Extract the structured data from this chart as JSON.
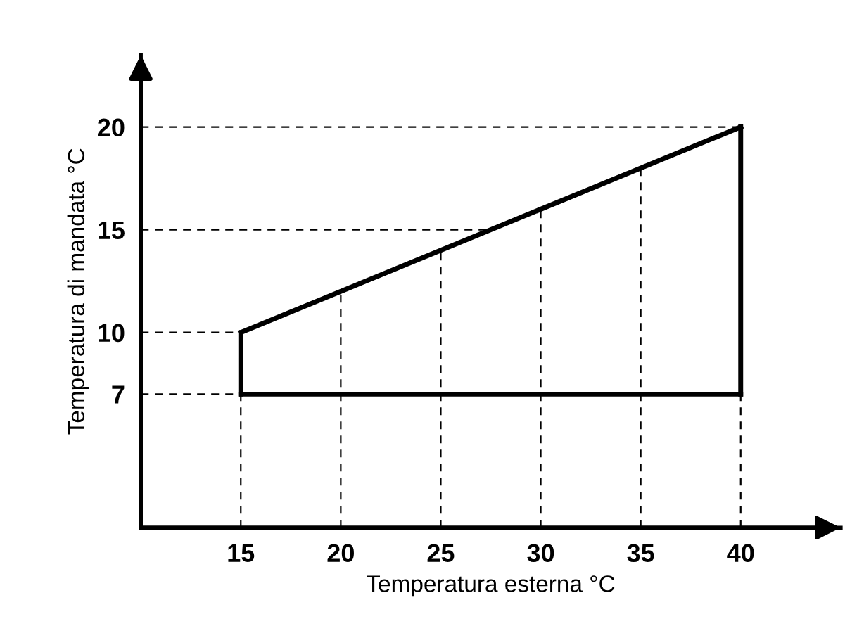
{
  "chart_data": {
    "type": "line",
    "xlabel": "Temperatura esterna °C",
    "ylabel": "Temperatura di mandata °C",
    "series": [
      {
        "x": [
          15,
          40
        ],
        "values": [
          10,
          20
        ],
        "color": "#000000",
        "line_style": "solid"
      },
      {
        "x": [
          15,
          40
        ],
        "values": [
          7,
          7
        ],
        "color": "#000000",
        "line_style": "solid"
      },
      {
        "x": [
          15,
          15
        ],
        "values": [
          7,
          10
        ],
        "color": "#000000",
        "line_style": "solid"
      },
      {
        "x": [
          40,
          40
        ],
        "values": [
          7,
          20
        ],
        "color": "#000000",
        "line_style": "solid"
      },
      {
        "x": [
          15,
          15
        ],
        "values": [
          0.5,
          7
        ],
        "color": "#000000",
        "line_style": "dashed"
      },
      {
        "x": [
          20,
          20
        ],
        "values": [
          0.5,
          12
        ],
        "color": "#000000",
        "line_style": "dashed"
      },
      {
        "x": [
          25,
          25
        ],
        "values": [
          0.5,
          14
        ],
        "color": "#000000",
        "line_style": "dashed"
      },
      {
        "x": [
          30,
          30
        ],
        "values": [
          0.5,
          16
        ],
        "color": "#000000",
        "line_style": "dashed"
      },
      {
        "x": [
          35,
          35
        ],
        "values": [
          0.5,
          18
        ],
        "color": "#000000",
        "line_style": "dashed"
      },
      {
        "x": [
          40,
          40
        ],
        "values": [
          0.5,
          7
        ],
        "color": "#000000",
        "line_style": "dashed"
      },
      {
        "x": [
          10,
          15
        ],
        "values": [
          7,
          7
        ],
        "color": "#000000",
        "line_style": "dashed"
      },
      {
        "x": [
          10,
          15
        ],
        "values": [
          10,
          10
        ],
        "color": "#000000",
        "line_style": "dashed"
      },
      {
        "x": [
          10,
          27.5
        ],
        "values": [
          15,
          15
        ],
        "color": "#000000",
        "line_style": "dashed"
      },
      {
        "x": [
          10,
          40
        ],
        "values": [
          20,
          20
        ],
        "color": "#000000",
        "line_style": "dashed"
      }
    ],
    "xlim": [
      10,
      45
    ],
    "ylim": [
      0.5,
      23.5
    ],
    "xticks": [
      15,
      20,
      25,
      30,
      35,
      40
    ],
    "yticks": [
      7,
      10,
      15,
      20
    ],
    "marker": "none"
  }
}
